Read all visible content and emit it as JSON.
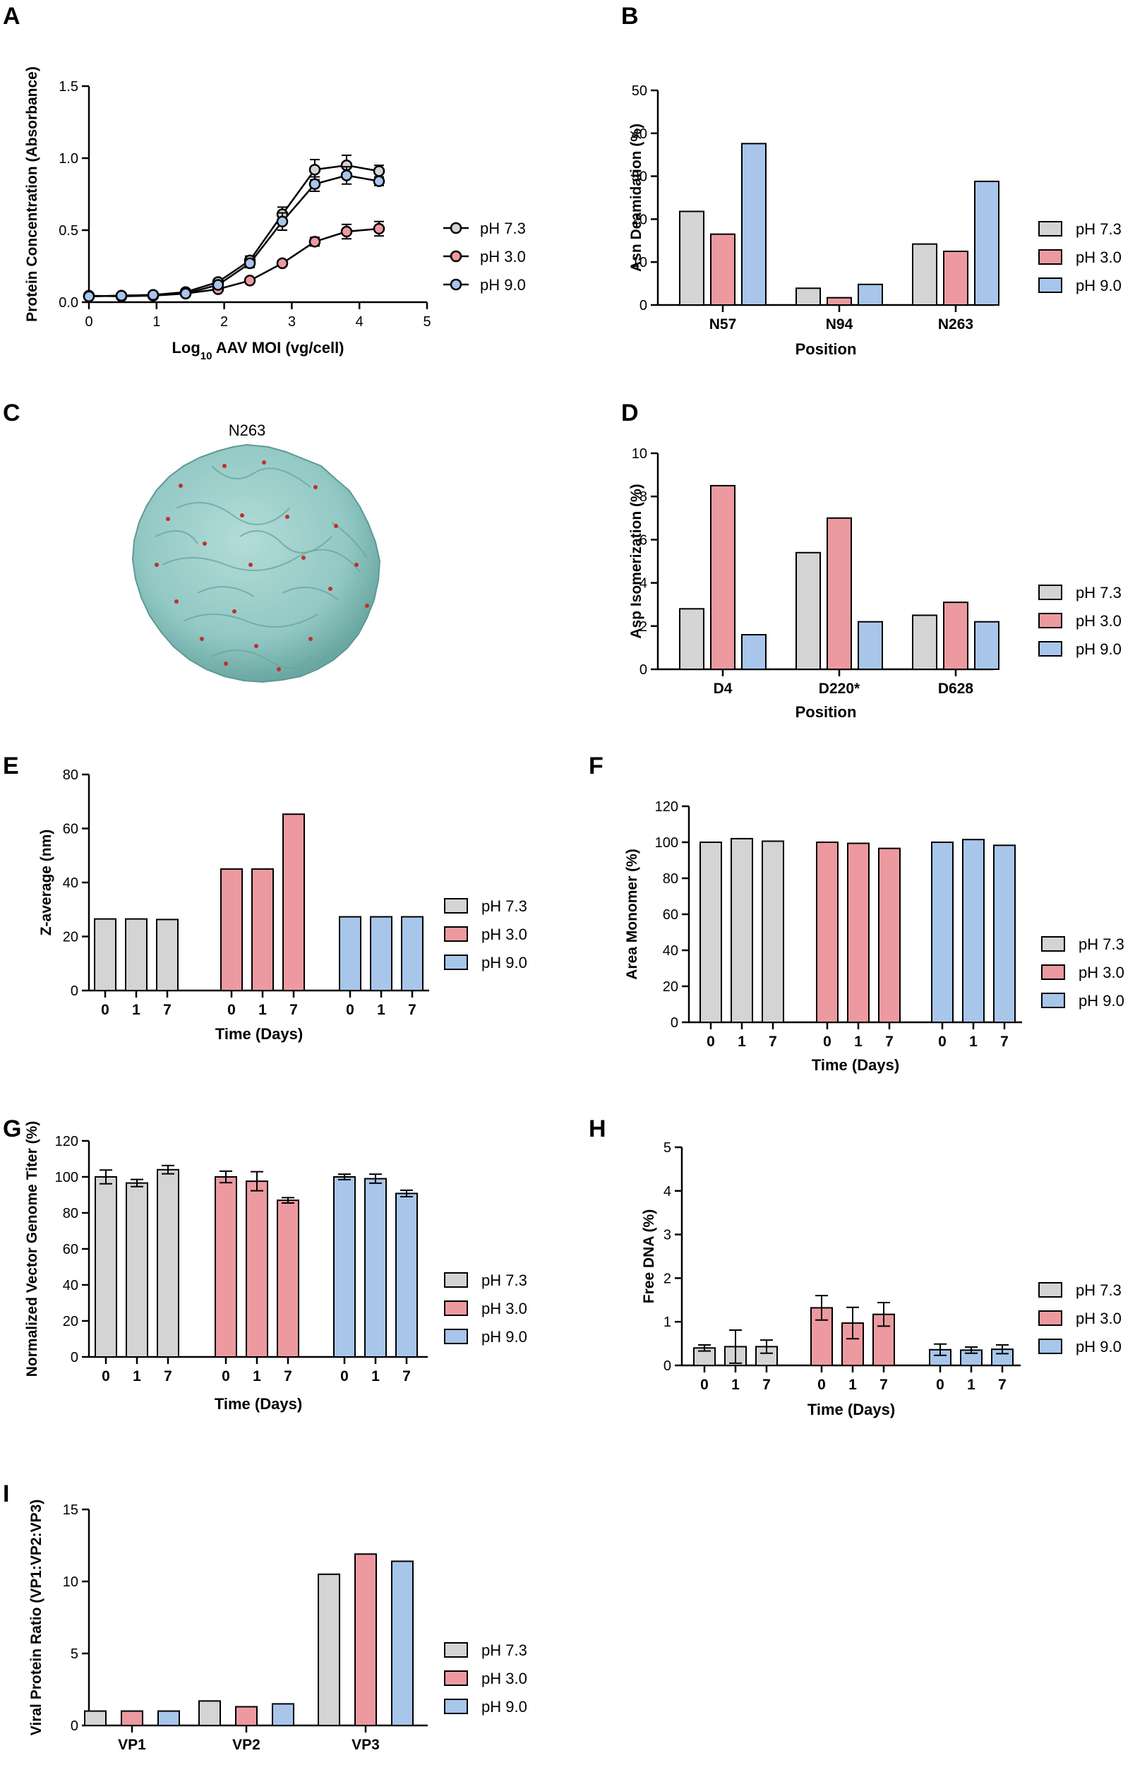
{
  "colors": {
    "ph73": "#d4d4d4",
    "ph30": "#ec9aa0",
    "ph90": "#a7c6ea",
    "axis": "#000000",
    "capsid": "#92c8c4",
    "capsid_dark": "#6aa7a2",
    "residue": "#c0302f"
  },
  "legend": [
    "pH 7.3",
    "pH 3.0",
    "pH 9.0"
  ],
  "structure": {
    "panel": "C",
    "label": "N263"
  },
  "chart_data": [
    {
      "id": "A",
      "panel": "A",
      "type": "scatter",
      "xlabel_main": "Log",
      "xlabel_sub": "10",
      "xlabel_rest": " AAV MOI (vg/cell)",
      "ylabel": "Protein Concentration (Absorbance)",
      "xlim": [
        0,
        5
      ],
      "ylim": [
        0,
        1.5
      ],
      "xticks": [
        0,
        1,
        2,
        3,
        4,
        5
      ],
      "yticks": [
        0.0,
        0.5,
        1.0,
        1.5
      ],
      "ytick_labels": [
        "0.0",
        "0.5",
        "1.0",
        "1.5"
      ],
      "x": [
        0,
        0.48,
        0.95,
        1.43,
        1.91,
        2.38,
        2.86,
        3.34,
        3.81,
        4.29
      ],
      "series": [
        {
          "name": "pH 7.3",
          "values": [
            0.04,
            0.045,
            0.05,
            0.07,
            0.14,
            0.29,
            0.61,
            0.92,
            0.95,
            0.91
          ],
          "errors": [
            0.02,
            0.01,
            0.02,
            0.02,
            0.02,
            0.03,
            0.05,
            0.07,
            0.07,
            0.04
          ]
        },
        {
          "name": "pH 3.0",
          "values": [
            0.045,
            0.04,
            0.045,
            0.06,
            0.09,
            0.15,
            0.27,
            0.42,
            0.49,
            0.51
          ],
          "errors": [
            0.01,
            0.01,
            0.01,
            0.01,
            0.01,
            0.01,
            0.02,
            0.03,
            0.05,
            0.05
          ]
        },
        {
          "name": "pH 9.0",
          "values": [
            0.04,
            0.045,
            0.05,
            0.06,
            0.12,
            0.27,
            0.56,
            0.82,
            0.88,
            0.84
          ],
          "errors": [
            0.01,
            0.01,
            0.01,
            0.01,
            0.02,
            0.03,
            0.06,
            0.05,
            0.06,
            0.03
          ]
        }
      ]
    },
    {
      "id": "B",
      "panel": "B",
      "type": "bar",
      "xlabel": "Position",
      "ylabel": "Asn Deamidation (%)",
      "ylim": [
        0,
        50
      ],
      "yticks": [
        0,
        10,
        20,
        30,
        40,
        50
      ],
      "categories": [
        "N57",
        "N94",
        "N263"
      ],
      "series": [
        {
          "name": "pH 7.3",
          "values": [
            21.8,
            3.9,
            14.2
          ]
        },
        {
          "name": "pH 3.0",
          "values": [
            16.5,
            1.7,
            12.5
          ]
        },
        {
          "name": "pH 9.0",
          "values": [
            37.6,
            4.8,
            28.8
          ]
        }
      ]
    },
    {
      "id": "D",
      "panel": "D",
      "type": "bar",
      "xlabel": "Position",
      "ylabel": "Asp Isomerization (%)",
      "ylim": [
        0,
        10
      ],
      "yticks": [
        0,
        2,
        4,
        6,
        8,
        10
      ],
      "categories": [
        "D4",
        "D220*",
        "D628"
      ],
      "series": [
        {
          "name": "pH 7.3",
          "values": [
            2.8,
            5.4,
            2.5
          ]
        },
        {
          "name": "pH 3.0",
          "values": [
            8.5,
            7.0,
            3.1
          ]
        },
        {
          "name": "pH 9.0",
          "values": [
            1.6,
            2.2,
            2.2
          ]
        }
      ]
    },
    {
      "id": "E",
      "panel": "E",
      "type": "bar",
      "xlabel": "Time (Days)",
      "ylabel": "Z-average (nm)",
      "ylim": [
        0,
        80
      ],
      "yticks": [
        0,
        20,
        40,
        60,
        80
      ],
      "categories": [
        "0",
        "1",
        "7"
      ],
      "series": [
        {
          "name": "pH 7.3",
          "values": [
            26.5,
            26.5,
            26.3
          ]
        },
        {
          "name": "pH 3.0",
          "values": [
            45,
            45,
            65.3
          ]
        },
        {
          "name": "pH 9.0",
          "values": [
            27.3,
            27.3,
            27.3
          ]
        }
      ]
    },
    {
      "id": "F",
      "panel": "F",
      "type": "bar",
      "xlabel": "Time (Days)",
      "ylabel": "Area Monomer (%)",
      "ylim": [
        0,
        120
      ],
      "yticks": [
        0,
        20,
        40,
        60,
        80,
        100,
        120
      ],
      "categories": [
        "0",
        "1",
        "7"
      ],
      "series": [
        {
          "name": "pH 7.3",
          "values": [
            100,
            102,
            100.6
          ]
        },
        {
          "name": "pH 3.0",
          "values": [
            100,
            99.4,
            96.6
          ]
        },
        {
          "name": "pH 9.0",
          "values": [
            100,
            101.5,
            98.3
          ]
        }
      ]
    },
    {
      "id": "G",
      "panel": "G",
      "type": "bar",
      "xlabel": "Time (Days)",
      "ylabel": "Normalized Vector Genome Titer (%)",
      "ylim": [
        0,
        120
      ],
      "yticks": [
        0,
        20,
        40,
        60,
        80,
        100,
        120
      ],
      "categories": [
        "0",
        "1",
        "7"
      ],
      "series": [
        {
          "name": "pH 7.3",
          "values": [
            100,
            96.6,
            104
          ],
          "errors": [
            3.8,
            2,
            2.3
          ]
        },
        {
          "name": "pH 3.0",
          "values": [
            100,
            97.6,
            87
          ],
          "errors": [
            3.2,
            5.3,
            1.5
          ]
        },
        {
          "name": "pH 9.0",
          "values": [
            100,
            99,
            90.8
          ],
          "errors": [
            1.5,
            2.5,
            1.8
          ]
        }
      ]
    },
    {
      "id": "H",
      "panel": "H",
      "type": "bar",
      "xlabel": "Time (Days)",
      "ylabel": "Free DNA (%)",
      "ylim": [
        0,
        5
      ],
      "yticks": [
        0,
        1,
        2,
        3,
        4,
        5
      ],
      "categories": [
        "0",
        "1",
        "7"
      ],
      "series": [
        {
          "name": "pH 7.3",
          "values": [
            0.4,
            0.43,
            0.43
          ],
          "errors": [
            0.07,
            0.38,
            0.15
          ]
        },
        {
          "name": "pH 3.0",
          "values": [
            1.32,
            0.97,
            1.17
          ],
          "errors": [
            0.28,
            0.36,
            0.27
          ]
        },
        {
          "name": "pH 9.0",
          "values": [
            0.36,
            0.35,
            0.37
          ],
          "errors": [
            0.13,
            0.07,
            0.1
          ]
        }
      ]
    },
    {
      "id": "I",
      "panel": "I",
      "type": "bar",
      "xlabel": "",
      "ylabel": "Viral Protein Ratio (VP1:VP2:VP3)",
      "ylim": [
        0,
        15
      ],
      "yticks": [
        0,
        5,
        10,
        15
      ],
      "categories": [
        "VP1",
        "VP2",
        "VP3"
      ],
      "series": [
        {
          "name": "pH 7.3",
          "values": [
            1,
            1.7,
            10.5
          ]
        },
        {
          "name": "pH 3.0",
          "values": [
            1,
            1.3,
            11.9
          ]
        },
        {
          "name": "pH 9.0",
          "values": [
            1,
            1.5,
            11.4
          ]
        }
      ]
    }
  ]
}
